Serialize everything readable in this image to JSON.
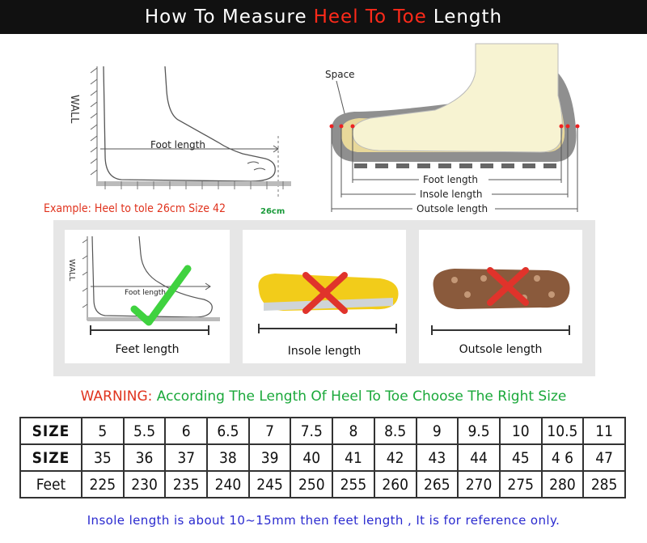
{
  "header": {
    "title_pre": "How To Measure",
    "title_highlight": "Heel To Toe",
    "title_post": "Length"
  },
  "diagram_left": {
    "wall_label": "WALL",
    "foot_length_label": "Foot length",
    "example_text": "Example: Heel to tole 26cm Size 42",
    "cm_label": "26cm"
  },
  "diagram_right": {
    "space_label": "Space",
    "foot_length_label": "Foot length",
    "insole_length_label": "Insole length",
    "outsole_length_label": "Outsole length"
  },
  "panels": [
    {
      "label": "Feet length",
      "wall_label": "WALL",
      "foot_length_label": "Foot length"
    },
    {
      "label": "Insole length"
    },
    {
      "label": "Outsole length"
    }
  ],
  "warning": {
    "prefix": "WARNING:",
    "text": "According The Length Of Heel To Toe Choose The Right Size"
  },
  "size_table": {
    "rows": [
      {
        "label": "SIZE",
        "values": [
          "5",
          "5.5",
          "6",
          "6.5",
          "7",
          "7.5",
          "8",
          "8.5",
          "9",
          "9.5",
          "10",
          "10.5",
          "11"
        ]
      },
      {
        "label": "SIZE",
        "values": [
          "35",
          "36",
          "37",
          "38",
          "39",
          "40",
          "41",
          "42",
          "43",
          "44",
          "45",
          "4 6",
          "47"
        ]
      },
      {
        "label": "Feet",
        "values": [
          "225",
          "230",
          "235",
          "240",
          "245",
          "250",
          "255",
          "260",
          "265",
          "270",
          "275",
          "280",
          "285"
        ]
      }
    ]
  },
  "footer_note": "Insole length is about 10~15mm then feet length , It is for reference only.",
  "colors": {
    "accent_red": "#ff2a1a",
    "warning_green": "#1aa83a",
    "note_blue": "#2a2acf",
    "banner_bg": "#111111"
  }
}
